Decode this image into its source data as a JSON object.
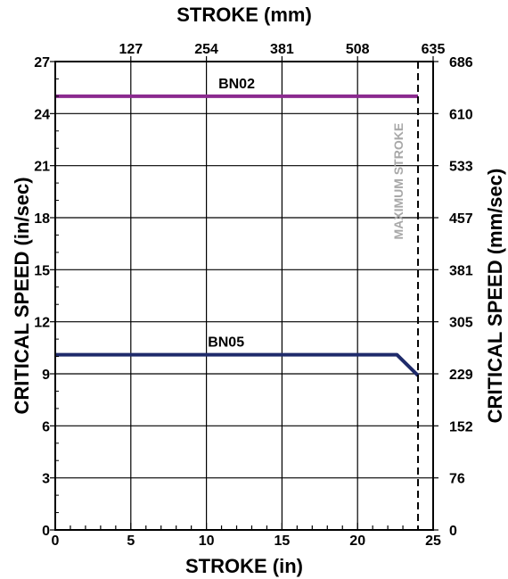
{
  "chart_data": {
    "type": "line",
    "title": "",
    "xlabel": "STROKE (in)",
    "x2label": "STROKE (mm)",
    "ylabel": "CRITICAL SPEED (in/sec)",
    "y2label": "CRITICAL SPEED (mm/sec)",
    "xlim": [
      0,
      25
    ],
    "ylim": [
      0,
      27
    ],
    "x_ticks": [
      "0",
      "5",
      "10",
      "15",
      "20",
      "25"
    ],
    "x2_ticks": [
      "127",
      "254",
      "381",
      "508",
      "635"
    ],
    "y_ticks": [
      "0",
      "3",
      "6",
      "9",
      "12",
      "15",
      "18",
      "21",
      "24",
      "27"
    ],
    "y2_ticks": [
      "0",
      "76",
      "152",
      "229",
      "305",
      "381",
      "457",
      "533",
      "610",
      "686"
    ],
    "grid": true,
    "series": [
      {
        "name": "BN02",
        "color": "#8b2a8f",
        "x": [
          0,
          24
        ],
        "y": [
          25,
          25
        ]
      },
      {
        "name": "BN05",
        "color": "#1f2b6b",
        "x": [
          0,
          22.6,
          24
        ],
        "y": [
          10.1,
          10.1,
          8.9
        ]
      }
    ],
    "annotations": [
      {
        "text": "MAXIMUM STROKE",
        "x": 24,
        "style": "dashed-vertical"
      }
    ]
  }
}
